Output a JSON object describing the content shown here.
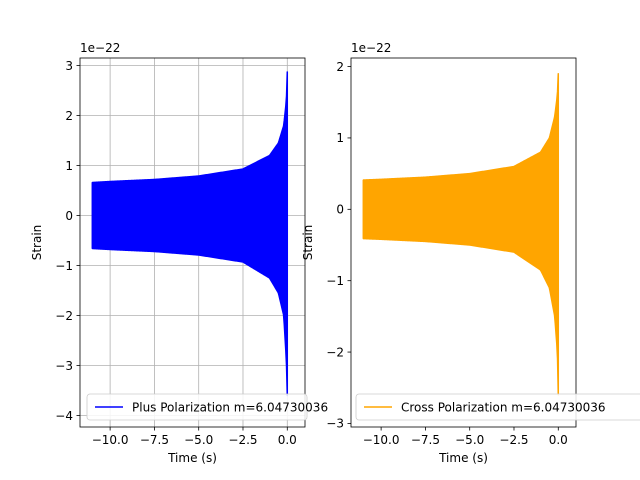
{
  "chart_data": [
    {
      "type": "line",
      "xlabel": "Time (s)",
      "ylabel": "Strain",
      "offset_text": "1e−22",
      "xlim": [
        -11.7,
        1.0
      ],
      "ylim": [
        -4.23,
        3.15
      ],
      "scale": 1e-22,
      "xticks": [
        -10.0,
        -7.5,
        -5.0,
        -2.5,
        0.0
      ],
      "xtick_labels": [
        "−10.0",
        "−7.5",
        "−5.0",
        "−2.5",
        "0.0"
      ],
      "yticks": [
        -4,
        -3,
        -2,
        -1,
        0,
        1,
        2,
        3
      ],
      "ytick_labels": [
        "−4",
        "−3",
        "−2",
        "−1",
        "0",
        "1",
        "2",
        "3"
      ],
      "grid": true,
      "legend_position": "lower-right",
      "series": [
        {
          "name": "Plus Polarization m=6.04730036",
          "color": "#0000ff",
          "envelope": {
            "t_start": -11.0,
            "upper": [
              [
                -11.0,
                0.66
              ],
              [
                -10.0,
                0.68
              ],
              [
                -7.5,
                0.72
              ],
              [
                -5.0,
                0.79
              ],
              [
                -2.5,
                0.93
              ],
              [
                -1.0,
                1.2
              ],
              [
                -0.5,
                1.45
              ],
              [
                -0.2,
                1.8
              ],
              [
                -0.05,
                2.3
              ],
              [
                0.0,
                2.87
              ]
            ],
            "lower": [
              [
                -11.0,
                -0.66
              ],
              [
                -10.0,
                -0.68
              ],
              [
                -7.5,
                -0.72
              ],
              [
                -5.0,
                -0.79
              ],
              [
                -2.5,
                -0.93
              ],
              [
                -1.0,
                -1.25
              ],
              [
                -0.5,
                -1.55
              ],
              [
                -0.2,
                -2.0
              ],
              [
                -0.05,
                -2.9
              ],
              [
                0.0,
                -3.6
              ]
            ]
          }
        }
      ]
    },
    {
      "type": "line",
      "xlabel": "Time (s)",
      "ylabel": "Strain",
      "offset_text": "1e−22",
      "xlim": [
        -11.7,
        1.0
      ],
      "ylim": [
        -3.05,
        2.12
      ],
      "scale": 1e-22,
      "xticks": [
        -10.0,
        -7.5,
        -5.0,
        -2.5,
        0.0
      ],
      "xtick_labels": [
        "−10.0",
        "−7.5",
        "−5.0",
        "−2.5",
        "0.0"
      ],
      "yticks": [
        -3,
        -2,
        -1,
        0,
        1,
        2
      ],
      "ytick_labels": [
        "−3",
        "−2",
        "−1",
        "0",
        "1",
        "2"
      ],
      "grid": false,
      "legend_position": "lower-right",
      "series": [
        {
          "name": "Cross Polarization m=6.04730036",
          "color": "#ffa500",
          "envelope": {
            "t_start": -11.0,
            "upper": [
              [
                -11.0,
                0.41
              ],
              [
                -10.0,
                0.42
              ],
              [
                -7.5,
                0.45
              ],
              [
                -5.0,
                0.5
              ],
              [
                -2.5,
                0.6
              ],
              [
                -1.0,
                0.8
              ],
              [
                -0.5,
                1.0
              ],
              [
                -0.2,
                1.3
              ],
              [
                -0.05,
                1.6
              ],
              [
                0.0,
                1.9
              ]
            ],
            "lower": [
              [
                -11.0,
                -0.41
              ],
              [
                -10.0,
                -0.42
              ],
              [
                -7.5,
                -0.45
              ],
              [
                -5.0,
                -0.5
              ],
              [
                -2.5,
                -0.6
              ],
              [
                -1.0,
                -0.85
              ],
              [
                -0.5,
                -1.1
              ],
              [
                -0.2,
                -1.5
              ],
              [
                -0.05,
                -2.0
              ],
              [
                0.0,
                -2.6
              ]
            ]
          }
        }
      ]
    }
  ]
}
